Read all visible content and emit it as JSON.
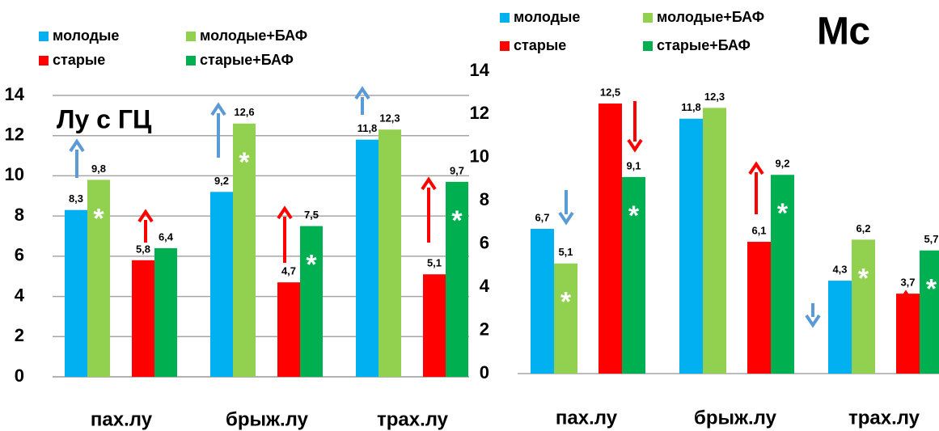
{
  "chart_data": [
    {
      "type": "bar",
      "title": "Лу с ГЦ",
      "categories": [
        "пах.лу",
        "брыж.лу",
        "трах.лу"
      ],
      "series": [
        {
          "name": "молодые",
          "color": "#00b0f0",
          "values": [
            8.3,
            9.2,
            11.8
          ],
          "value_labels": [
            "8,3",
            "9,2",
            "11,8"
          ]
        },
        {
          "name": "молодые+БАФ",
          "color": "#92d050",
          "values": [
            9.8,
            12.6,
            12.3
          ],
          "value_labels": [
            "9,8",
            "12,6",
            "12,3"
          ]
        },
        {
          "name": "старые",
          "color": "#ff0000",
          "values": [
            5.8,
            4.7,
            5.1
          ],
          "value_labels": [
            "5,8",
            "4,7",
            "5,1"
          ]
        },
        {
          "name": "старые+БАФ",
          "color": "#00b050",
          "values": [
            6.4,
            7.5,
            9.7
          ],
          "value_labels": [
            "6,4",
            "7,5",
            "9,7"
          ]
        }
      ],
      "ylim": [
        0,
        14
      ],
      "yticks": [
        0,
        2,
        4,
        6,
        8,
        10,
        12,
        14
      ],
      "grid": true,
      "significance": [
        "*",
        "*",
        "*",
        "*"
      ]
    },
    {
      "type": "bar",
      "title": "Мс",
      "categories": [
        "пах.лу",
        "брыж.лу",
        "трах.лу"
      ],
      "series": [
        {
          "name": "молодые",
          "color": "#00b0f0",
          "values": [
            6.7,
            11.8,
            4.3
          ],
          "value_labels": [
            "6,7",
            "11,8",
            "4,3"
          ]
        },
        {
          "name": "молодые+БАФ",
          "color": "#92d050",
          "values": [
            5.1,
            12.3,
            6.2
          ],
          "value_labels": [
            "5,1",
            "12,3",
            "6,2"
          ]
        },
        {
          "name": "старые",
          "color": "#ff0000",
          "values": [
            12.5,
            6.1,
            3.7
          ],
          "value_labels": [
            "12,5",
            "6,1",
            "3,7"
          ]
        },
        {
          "name": "старые+БАФ",
          "color": "#00b050",
          "values": [
            9.1,
            9.2,
            5.7
          ],
          "value_labels": [
            "9,1",
            "9,2",
            "5,7"
          ]
        }
      ],
      "ylim": [
        0,
        14
      ],
      "yticks": [
        0,
        2,
        4,
        6,
        8,
        10,
        12,
        14
      ],
      "grid": false,
      "significance": [
        "*",
        "*",
        "*",
        "*",
        "*"
      ]
    }
  ]
}
